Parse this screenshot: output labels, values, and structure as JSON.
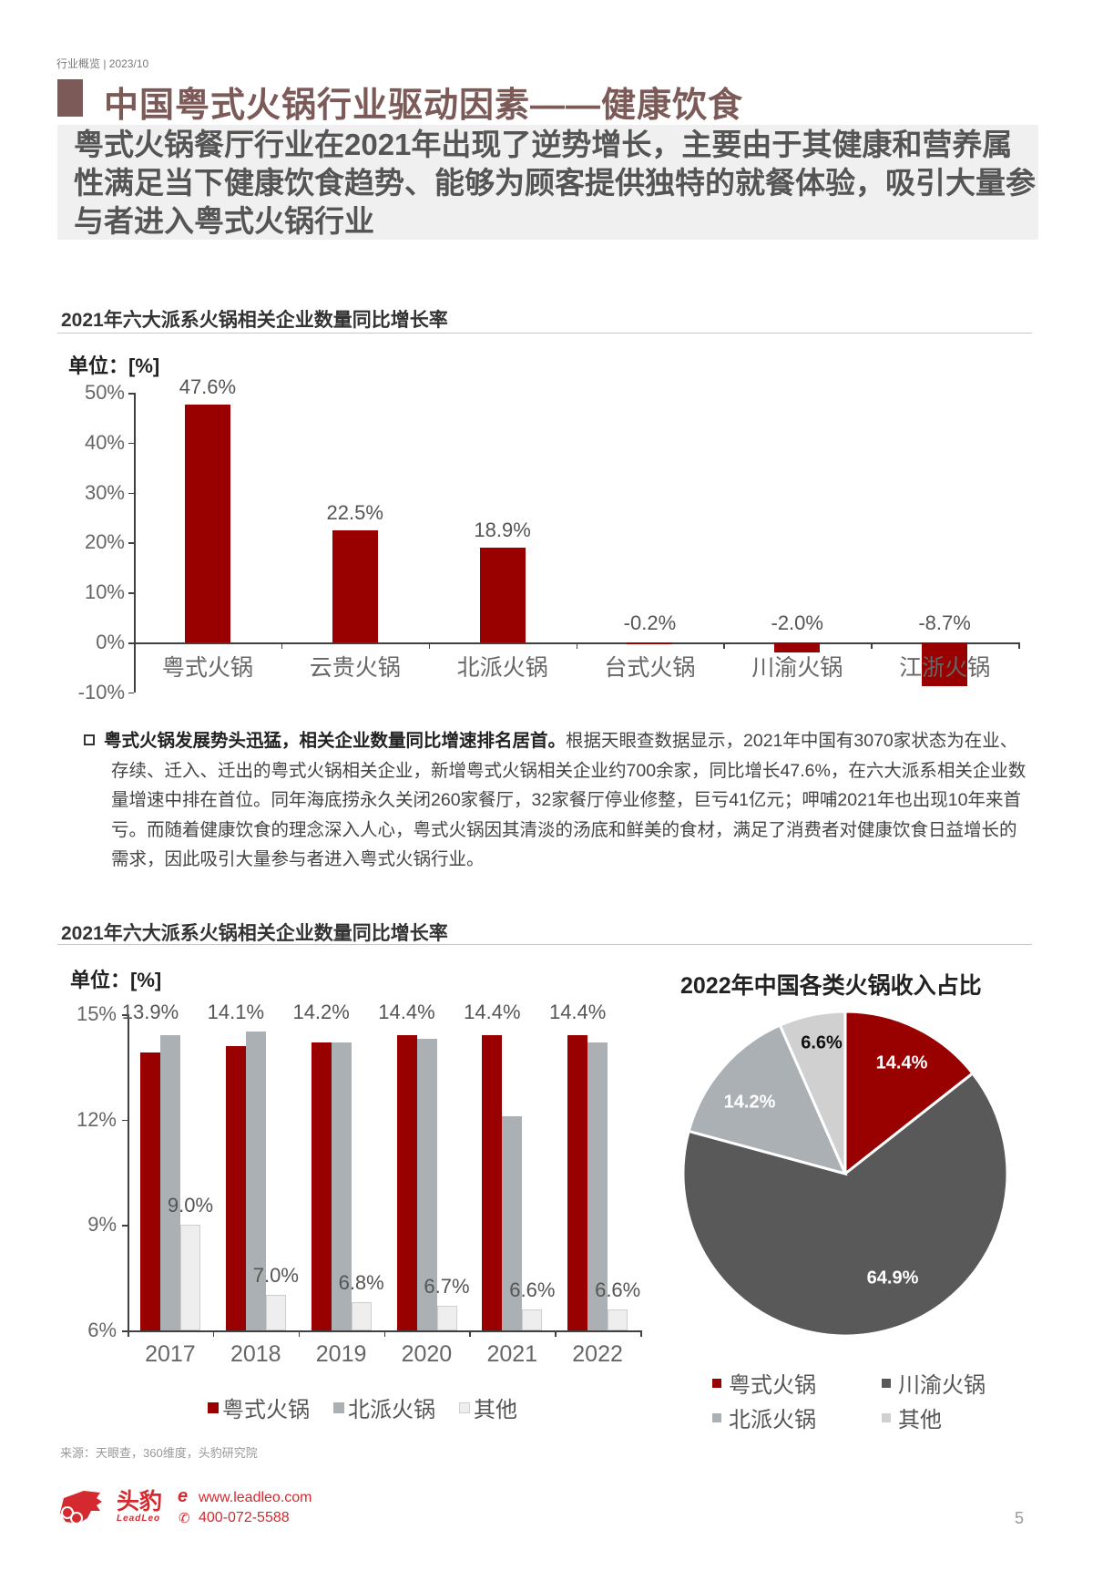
{
  "header": {
    "meta": "行业概览 | 2023/10",
    "title": "中国粤式火锅行业驱动因素——健康饮食",
    "summary": "粤式火锅餐厅行业在2021年出现了逆势增长，主要由于其健康和营养属性满足当下健康饮食趋势、能够为顾客提供独特的就餐体验，吸引大量参与者进入粤式火锅行业"
  },
  "colors": {
    "accent": "#7b5a58",
    "bar_red": "#990000",
    "bar_grey": "#aab0b3",
    "bar_light": "#eeeeee",
    "pie_dark": "#595959",
    "pie_grey": "#aab0b3",
    "pie_light": "#d0d0d0",
    "brand": "#d42a2f"
  },
  "section1": {
    "title": "2021年六大派系火锅相关企业数量同比增长率",
    "unit": "单位：[%]"
  },
  "paragraph": {
    "lead": "粤式火锅发展势头迅猛，相关企业数量同比增速排名居首。",
    "body": "根据天眼查数据显示，2021年中国有3070家状态为在业、存续、迁入、迁出的粤式火锅相关企业，新增粤式火锅相关企业约700余家，同比增长47.6%，在六大派系相关企业数量增速中排在首位。同年海底捞永久关闭260家餐厅，32家餐厅停业修整，巨亏41亿元；呷哺2021年也出现10年来首亏。而随着健康饮食的理念深入人心，粤式火锅因其清淡的汤底和鲜美的食材，满足了消费者对健康饮食日益增长的需求，因此吸引大量参与者进入粤式火锅行业。"
  },
  "section2": {
    "title": "2021年六大派系火锅相关企业数量同比增长率",
    "unit": "单位：[%]"
  },
  "chart_data": [
    {
      "type": "bar",
      "title": "2021年六大派系火锅相关企业数量同比增长率",
      "unit": "单位：[%]",
      "categories": [
        "粤式火锅",
        "云贵火锅",
        "北派火锅",
        "台式火锅",
        "川渝火锅",
        "江浙火锅"
      ],
      "values": [
        47.6,
        22.5,
        18.9,
        -0.2,
        -2.0,
        -8.7
      ],
      "value_labels": [
        "47.6%",
        "22.5%",
        "18.9%",
        "-0.2%",
        "-2.0%",
        "-8.7%"
      ],
      "xlabel": "",
      "ylabel": "",
      "ylim": [
        -10,
        50
      ],
      "yticks": [
        "50%",
        "40%",
        "30%",
        "20%",
        "10%",
        "0%",
        "-10%"
      ],
      "grid": false,
      "color": "#990000"
    },
    {
      "type": "bar",
      "title": "2021年六大派系火锅相关企业数量同比增长率",
      "unit": "单位：[%]",
      "categories": [
        "2017",
        "2018",
        "2019",
        "2020",
        "2021",
        "2022"
      ],
      "series": [
        {
          "name": "粤式火锅",
          "values": [
            13.9,
            14.1,
            14.2,
            14.4,
            14.4,
            14.4
          ],
          "labels": [
            "13.9%",
            "14.1%",
            "14.2%",
            "14.4%",
            "14.4%",
            "14.4%"
          ],
          "color": "#990000"
        },
        {
          "name": "北派火锅",
          "values": [
            14.4,
            14.5,
            14.2,
            14.3,
            12.1,
            14.2
          ],
          "color": "#aab0b3"
        },
        {
          "name": "其他",
          "values": [
            9.0,
            7.0,
            6.8,
            6.7,
            6.6,
            6.6
          ],
          "labels": [
            "9.0%",
            "7.0%",
            "6.8%",
            "6.7%",
            "6.6%",
            "6.6%"
          ],
          "color": "#eeeeee"
        }
      ],
      "ylim": [
        6,
        15
      ],
      "yticks": [
        "15%",
        "12%",
        "9%",
        "6%"
      ],
      "grid": false,
      "legend_position": "bottom"
    },
    {
      "type": "pie",
      "title": "2022年中国各类火锅收入占比",
      "slices": [
        {
          "name": "粤式火锅",
          "value": 14.4,
          "label": "14.4%",
          "color": "#990000"
        },
        {
          "name": "川渝火锅",
          "value": 64.9,
          "label": "64.9%",
          "color": "#595959"
        },
        {
          "name": "北派火锅",
          "value": 14.2,
          "label": "14.2%",
          "color": "#aab0b3"
        },
        {
          "name": "其他",
          "value": 6.6,
          "label": "6.6%",
          "color": "#d0d0d0"
        }
      ],
      "legend": [
        "粤式火锅",
        "川渝火锅",
        "北派火锅",
        "其他"
      ],
      "legend_position": "bottom"
    }
  ],
  "footer": {
    "source": "来源：天眼查，360维度，头豹研究院",
    "brand_cn": "头豹",
    "brand_en": "LeadLeo",
    "website": "www.leadleo.com",
    "phone": "400-072-5588",
    "page_number": "5"
  }
}
